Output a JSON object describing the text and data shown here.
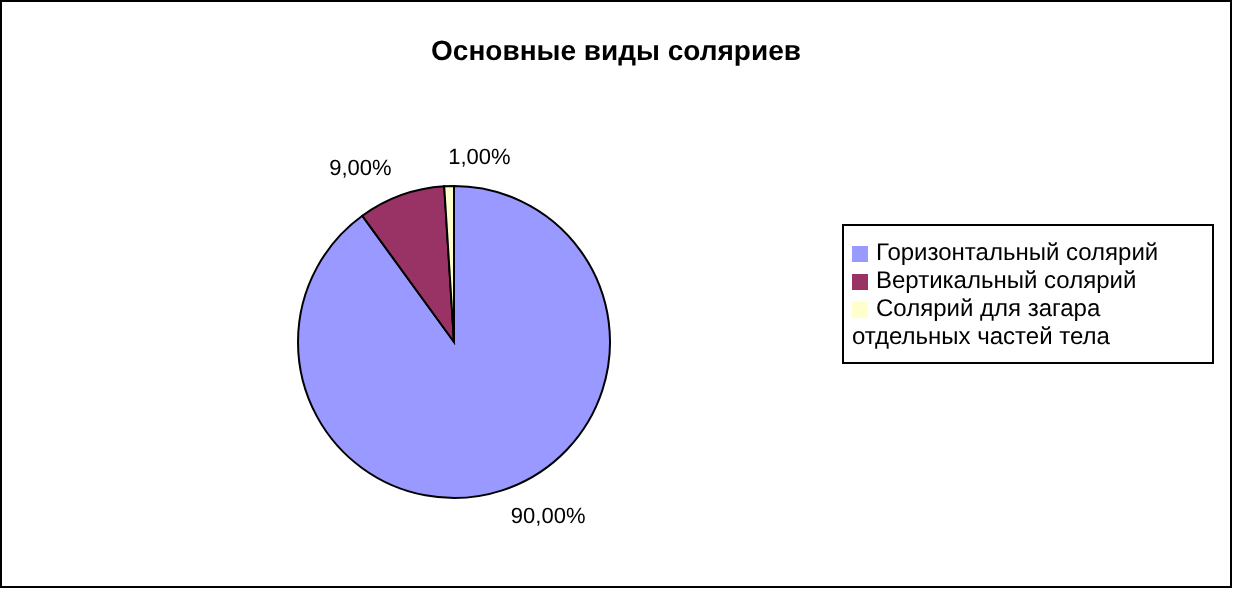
{
  "chart_data": {
    "type": "pie",
    "title": "Основные виды соляриев",
    "categories": [
      "Горизонтальный солярий",
      "Вертикальный солярий",
      "Солярий для загара отдельных частей тела"
    ],
    "values": [
      90,
      9,
      1
    ],
    "colors": [
      "#9999ff",
      "#993366",
      "#ffffcc"
    ],
    "value_labels": [
      "90,00%",
      "9,00%",
      "1,00%"
    ],
    "legend": "right"
  }
}
